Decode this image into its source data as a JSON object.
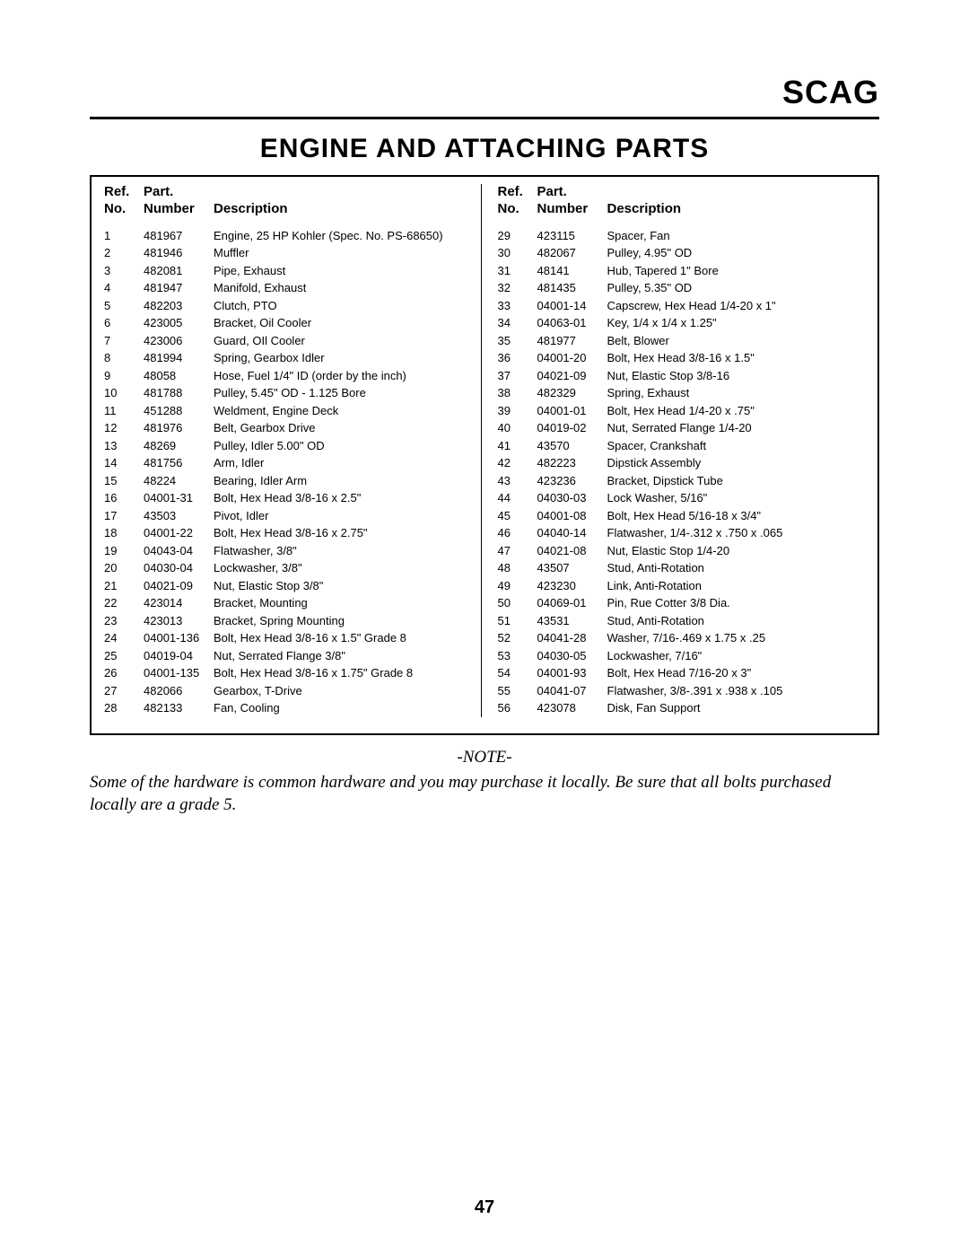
{
  "brand": "SCAG",
  "title": "ENGINE AND ATTACHING PARTS",
  "headers": {
    "ref_line1": "Ref.",
    "ref_line2": "No.",
    "part_line1": "Part.",
    "part_line2": "Number",
    "desc": "Description"
  },
  "left_rows": [
    {
      "ref": "1",
      "part": "481967",
      "desc": "Engine, 25 HP Kohler (Spec. No. PS-68650)"
    },
    {
      "ref": "2",
      "part": "481946",
      "desc": "Muffler"
    },
    {
      "ref": "3",
      "part": "482081",
      "desc": "Pipe, Exhaust"
    },
    {
      "ref": "4",
      "part": "481947",
      "desc": "Manifold, Exhaust"
    },
    {
      "ref": "5",
      "part": "482203",
      "desc": "Clutch, PTO"
    },
    {
      "ref": "6",
      "part": "423005",
      "desc": "Bracket, Oil Cooler"
    },
    {
      "ref": "7",
      "part": "423006",
      "desc": "Guard, OIl Cooler"
    },
    {
      "ref": "8",
      "part": "481994",
      "desc": "Spring, Gearbox Idler"
    },
    {
      "ref": "9",
      "part": "48058",
      "desc": "Hose, Fuel 1/4\" ID (order by the inch)"
    },
    {
      "ref": "10",
      "part": "481788",
      "desc": "Pulley, 5.45\" OD - 1.125 Bore"
    },
    {
      "ref": "11",
      "part": "451288",
      "desc": "Weldment, Engine Deck"
    },
    {
      "ref": "12",
      "part": "481976",
      "desc": "Belt, Gearbox Drive"
    },
    {
      "ref": "13",
      "part": "48269",
      "desc": "Pulley, Idler 5.00\" OD"
    },
    {
      "ref": "14",
      "part": "481756",
      "desc": "Arm, Idler"
    },
    {
      "ref": "15",
      "part": "48224",
      "desc": "Bearing, Idler Arm"
    },
    {
      "ref": "16",
      "part": "04001-31",
      "desc": "Bolt, Hex Head 3/8-16 x 2.5\""
    },
    {
      "ref": "17",
      "part": "43503",
      "desc": "Pivot, Idler"
    },
    {
      "ref": "18",
      "part": "04001-22",
      "desc": "Bolt, Hex Head 3/8-16 x 2.75\""
    },
    {
      "ref": "19",
      "part": "04043-04",
      "desc": "Flatwasher, 3/8\""
    },
    {
      "ref": "20",
      "part": "04030-04",
      "desc": "Lockwasher, 3/8\""
    },
    {
      "ref": "21",
      "part": "04021-09",
      "desc": "Nut, Elastic Stop 3/8\""
    },
    {
      "ref": "22",
      "part": "423014",
      "desc": "Bracket, Mounting"
    },
    {
      "ref": "23",
      "part": "423013",
      "desc": "Bracket, Spring Mounting"
    },
    {
      "ref": "24",
      "part": "04001-136",
      "desc": "Bolt, Hex Head 3/8-16 x 1.5\" Grade 8"
    },
    {
      "ref": "25",
      "part": "04019-04",
      "desc": "Nut, Serrated Flange 3/8\""
    },
    {
      "ref": "26",
      "part": "04001-135",
      "desc": "Bolt, Hex Head 3/8-16 x 1.75\" Grade 8"
    },
    {
      "ref": "27",
      "part": "482066",
      "desc": "Gearbox, T-Drive"
    },
    {
      "ref": "28",
      "part": "482133",
      "desc": "Fan, Cooling"
    }
  ],
  "right_rows": [
    {
      "ref": "29",
      "part": "423115",
      "desc": "Spacer, Fan"
    },
    {
      "ref": "30",
      "part": "482067",
      "desc": "Pulley, 4.95\" OD"
    },
    {
      "ref": "31",
      "part": "48141",
      "desc": "Hub, Tapered 1\" Bore"
    },
    {
      "ref": "32",
      "part": "481435",
      "desc": "Pulley, 5.35\" OD"
    },
    {
      "ref": "33",
      "part": "04001-14",
      "desc": "Capscrew, Hex Head 1/4-20 x 1\""
    },
    {
      "ref": "34",
      "part": "04063-01",
      "desc": "Key, 1/4 x 1/4 x 1.25\""
    },
    {
      "ref": "35",
      "part": "481977",
      "desc": "Belt, Blower"
    },
    {
      "ref": "36",
      "part": "04001-20",
      "desc": "Bolt, Hex Head 3/8-16 x 1.5\""
    },
    {
      "ref": "37",
      "part": "04021-09",
      "desc": "Nut, Elastic Stop 3/8-16"
    },
    {
      "ref": "38",
      "part": "482329",
      "desc": "Spring, Exhaust"
    },
    {
      "ref": "39",
      "part": "04001-01",
      "desc": "Bolt, Hex Head 1/4-20 x .75\""
    },
    {
      "ref": "40",
      "part": "04019-02",
      "desc": "Nut, Serrated Flange 1/4-20"
    },
    {
      "ref": "41",
      "part": "43570",
      "desc": "Spacer, Crankshaft"
    },
    {
      "ref": "42",
      "part": "482223",
      "desc": "Dipstick Assembly"
    },
    {
      "ref": "43",
      "part": "423236",
      "desc": "Bracket, Dipstick Tube"
    },
    {
      "ref": "44",
      "part": "04030-03",
      "desc": "Lock Washer, 5/16\""
    },
    {
      "ref": "45",
      "part": "04001-08",
      "desc": "Bolt, Hex Head 5/16-18 x 3/4\""
    },
    {
      "ref": "46",
      "part": "04040-14",
      "desc": "Flatwasher, 1/4-.312 x .750 x .065"
    },
    {
      "ref": "47",
      "part": "04021-08",
      "desc": "Nut, Elastic Stop 1/4-20"
    },
    {
      "ref": "48",
      "part": "43507",
      "desc": "Stud, Anti-Rotation"
    },
    {
      "ref": "49",
      "part": "423230",
      "desc": "Link, Anti-Rotation"
    },
    {
      "ref": "50",
      "part": "04069-01",
      "desc": "Pin, Rue Cotter 3/8 Dia."
    },
    {
      "ref": "51",
      "part": "43531",
      "desc": "Stud, Anti-Rotation"
    },
    {
      "ref": "52",
      "part": "04041-28",
      "desc": "Washer, 7/16-.469 x 1.75 x .25"
    },
    {
      "ref": "53",
      "part": "04030-05",
      "desc": "Lockwasher, 7/16\""
    },
    {
      "ref": "54",
      "part": "04001-93",
      "desc": "Bolt, Hex Head 7/16-20 x 3\""
    },
    {
      "ref": "55",
      "part": "04041-07",
      "desc": "Flatwasher, 3/8-.391 x .938 x .105"
    },
    {
      "ref": "56",
      "part": "423078",
      "desc": "Disk, Fan Support"
    }
  ],
  "note_title": "-NOTE-",
  "note_body": "Some of the hardware is common hardware and you may purchase it locally.  Be sure that all bolts purchased locally are a grade 5.",
  "page_number": "47"
}
